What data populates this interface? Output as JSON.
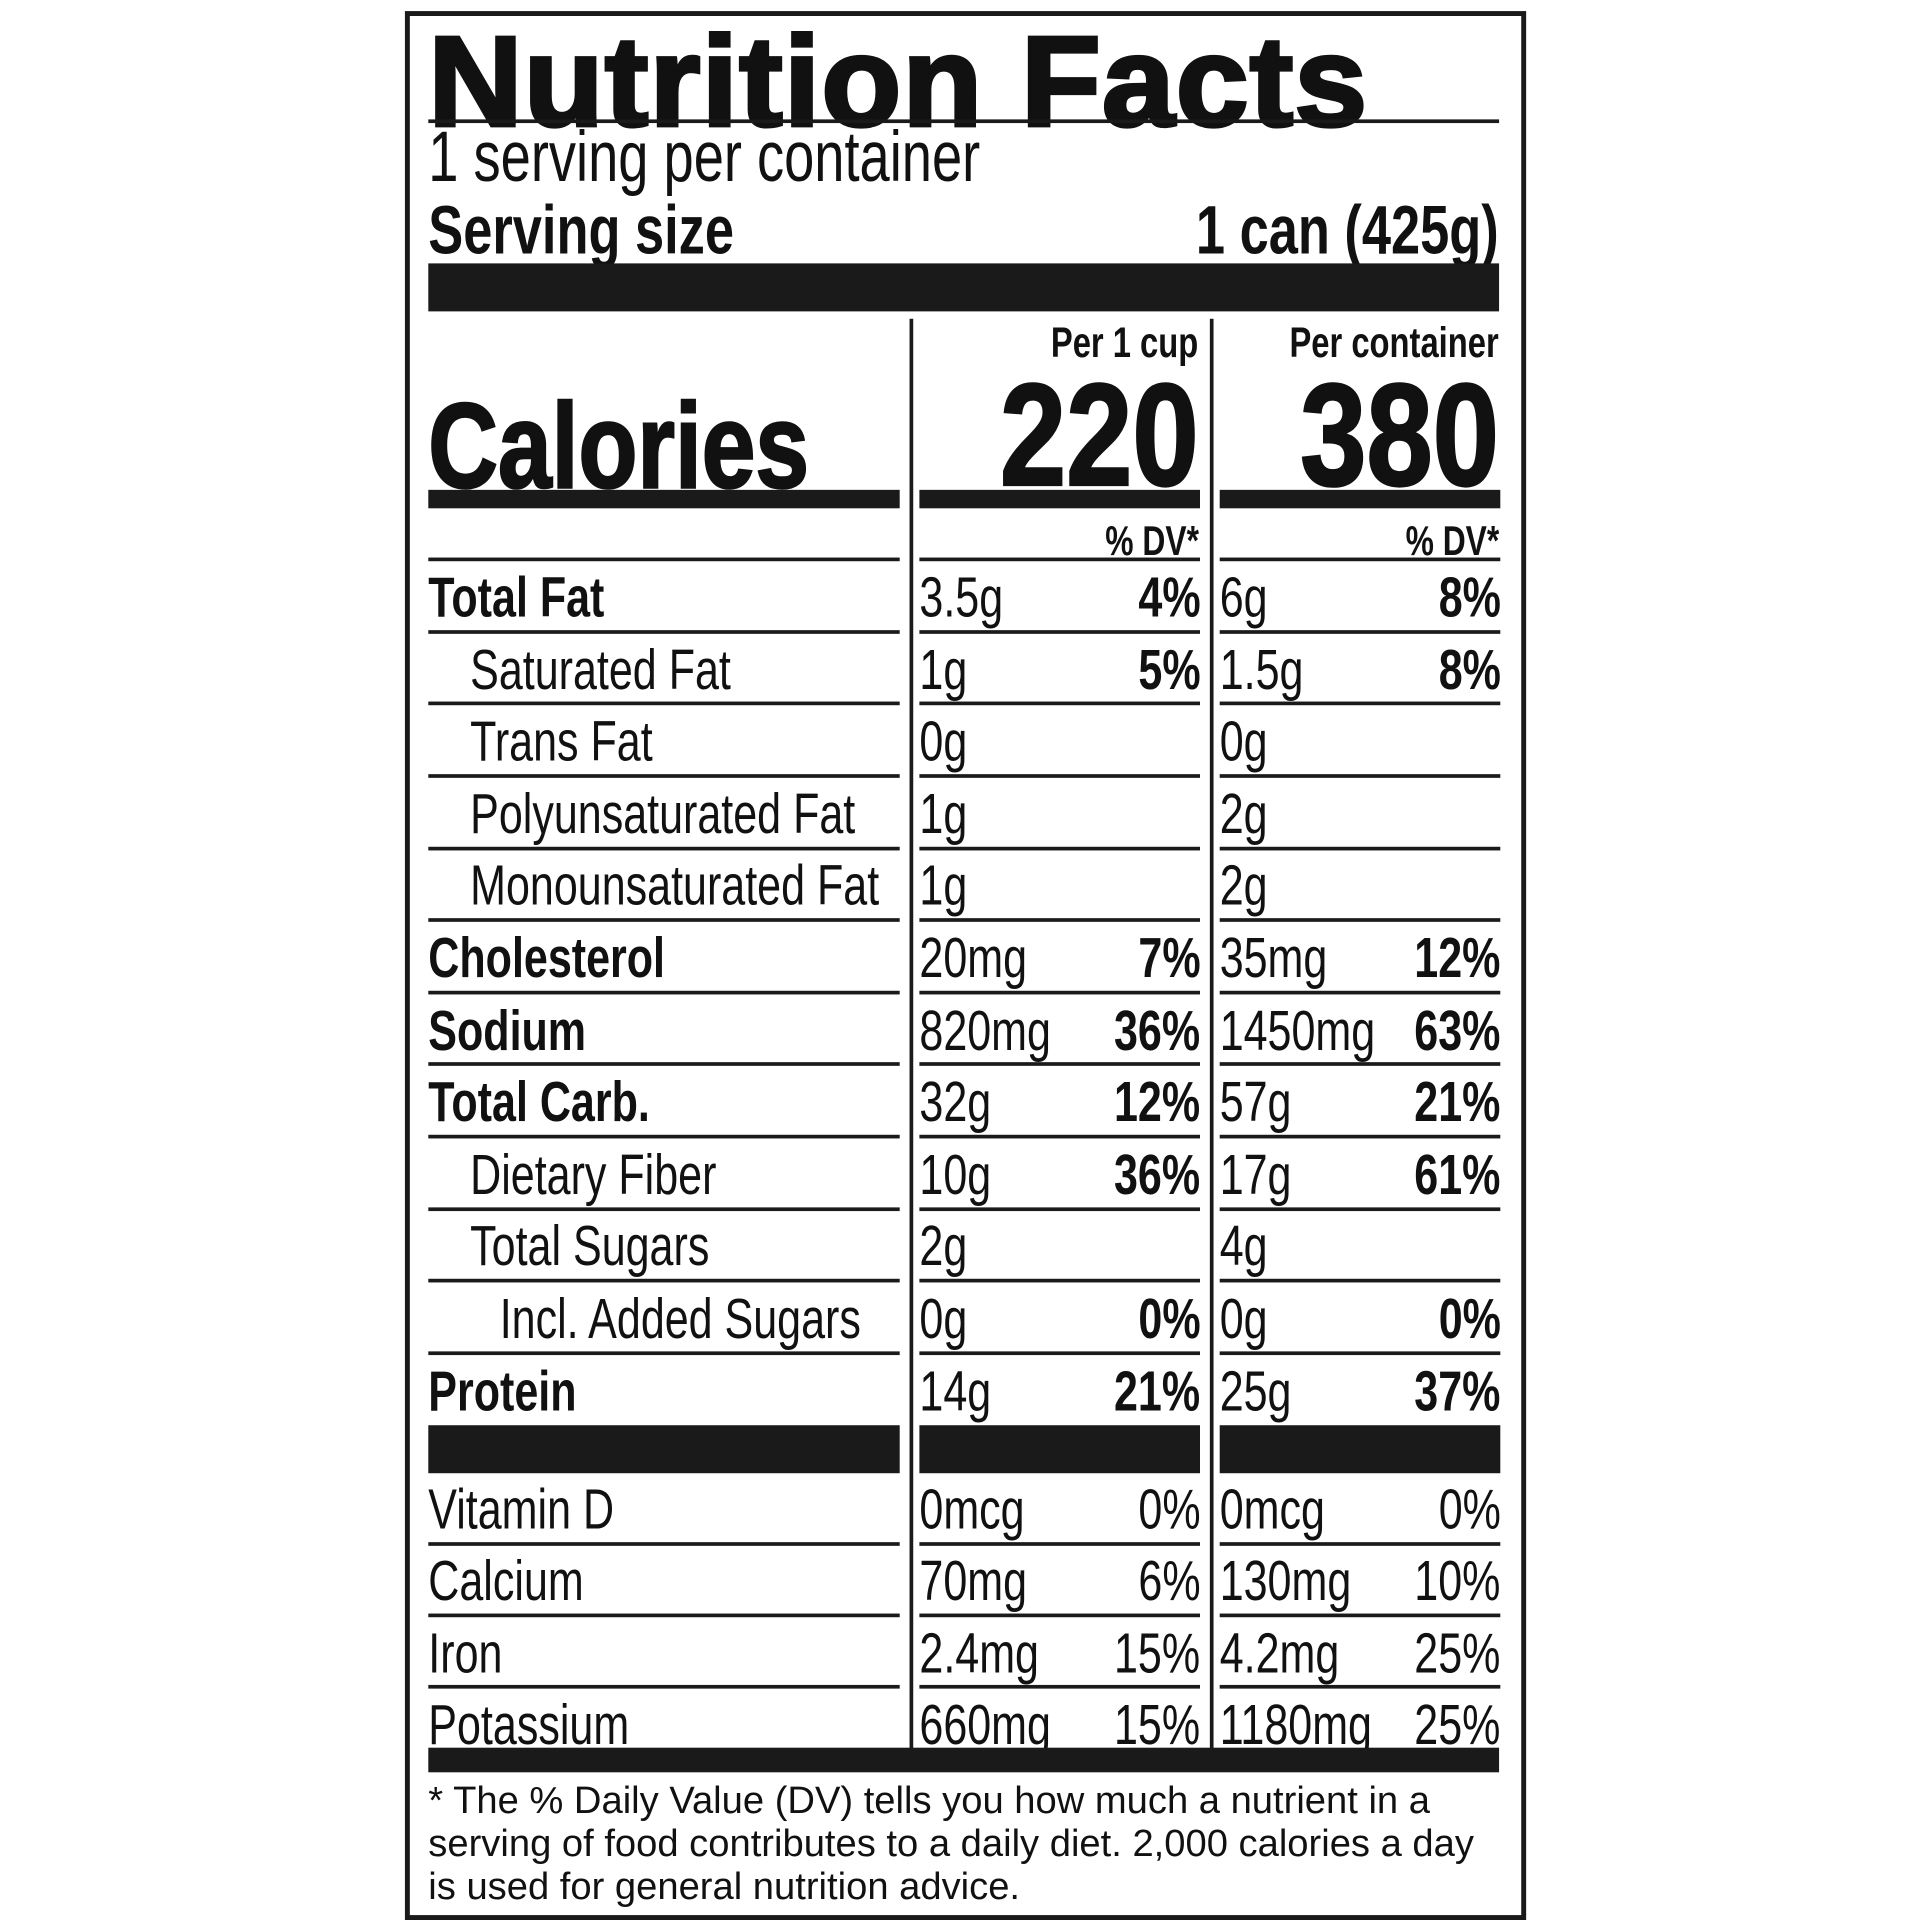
{
  "title": "Nutrition Facts",
  "servings_per_container": "1 serving per container",
  "serving_size_label": "Serving size",
  "serving_size_value": "1 can (425g)",
  "columns": {
    "per_cup": "Per 1 cup",
    "per_container": "Per container"
  },
  "calories": {
    "label": "Calories",
    "per_cup": "220",
    "per_container": "380"
  },
  "dv_header": "% DV*",
  "nutrients": [
    {
      "label": "Total Fat",
      "bold": true,
      "indent": 0,
      "per_cup": {
        "amount": "3.5g",
        "dv": "4%"
      },
      "per_container": {
        "amount": "6g",
        "dv": "8%"
      }
    },
    {
      "label": "Saturated Fat",
      "bold": false,
      "indent": 1,
      "per_cup": {
        "amount": "1g",
        "dv": "5%"
      },
      "per_container": {
        "amount": "1.5g",
        "dv": "8%"
      }
    },
    {
      "label": "Trans Fat",
      "bold": false,
      "indent": 1,
      "per_cup": {
        "amount": "0g",
        "dv": ""
      },
      "per_container": {
        "amount": "0g",
        "dv": ""
      }
    },
    {
      "label": "Polyunsaturated Fat",
      "bold": false,
      "indent": 1,
      "per_cup": {
        "amount": "1g",
        "dv": ""
      },
      "per_container": {
        "amount": "2g",
        "dv": ""
      }
    },
    {
      "label": "Monounsaturated Fat",
      "bold": false,
      "indent": 1,
      "per_cup": {
        "amount": "1g",
        "dv": ""
      },
      "per_container": {
        "amount": "2g",
        "dv": ""
      }
    },
    {
      "label": "Cholesterol",
      "bold": true,
      "indent": 0,
      "per_cup": {
        "amount": "20mg",
        "dv": "7%"
      },
      "per_container": {
        "amount": "35mg",
        "dv": "12%"
      }
    },
    {
      "label": "Sodium",
      "bold": true,
      "indent": 0,
      "per_cup": {
        "amount": "820mg",
        "dv": "36%"
      },
      "per_container": {
        "amount": "1450mg",
        "dv": "63%"
      }
    },
    {
      "label": "Total Carb.",
      "bold": true,
      "indent": 0,
      "per_cup": {
        "amount": "32g",
        "dv": "12%"
      },
      "per_container": {
        "amount": "57g",
        "dv": "21%"
      }
    },
    {
      "label": "Dietary Fiber",
      "bold": false,
      "indent": 1,
      "per_cup": {
        "amount": "10g",
        "dv": "36%"
      },
      "per_container": {
        "amount": "17g",
        "dv": "61%"
      }
    },
    {
      "label": "Total Sugars",
      "bold": false,
      "indent": 1,
      "per_cup": {
        "amount": "2g",
        "dv": ""
      },
      "per_container": {
        "amount": "4g",
        "dv": ""
      }
    },
    {
      "label": "Incl. Added Sugars",
      "bold": false,
      "indent": 2,
      "per_cup": {
        "amount": "0g",
        "dv": "0%"
      },
      "per_container": {
        "amount": "0g",
        "dv": "0%"
      }
    },
    {
      "label": "Protein",
      "bold": true,
      "indent": 0,
      "per_cup": {
        "amount": "14g",
        "dv": "21%"
      },
      "per_container": {
        "amount": "25g",
        "dv": "37%"
      }
    }
  ],
  "vitamins": [
    {
      "label": "Vitamin D",
      "per_cup": {
        "amount": "0mcg",
        "dv": "0%"
      },
      "per_container": {
        "amount": "0mcg",
        "dv": "0%"
      }
    },
    {
      "label": "Calcium",
      "per_cup": {
        "amount": "70mg",
        "dv": "6%"
      },
      "per_container": {
        "amount": "130mg",
        "dv": "10%"
      }
    },
    {
      "label": "Iron",
      "per_cup": {
        "amount": "2.4mg",
        "dv": "15%"
      },
      "per_container": {
        "amount": "4.2mg",
        "dv": "25%"
      }
    },
    {
      "label": "Potassium",
      "per_cup": {
        "amount": "660mg",
        "dv": "15%"
      },
      "per_container": {
        "amount": "1180mg",
        "dv": "25%"
      }
    }
  ],
  "footnote": "* The % Daily Value (DV) tells you how much a nutrient in a serving of food contributes to a daily diet. 2,000 calories a day is used for general nutrition advice."
}
